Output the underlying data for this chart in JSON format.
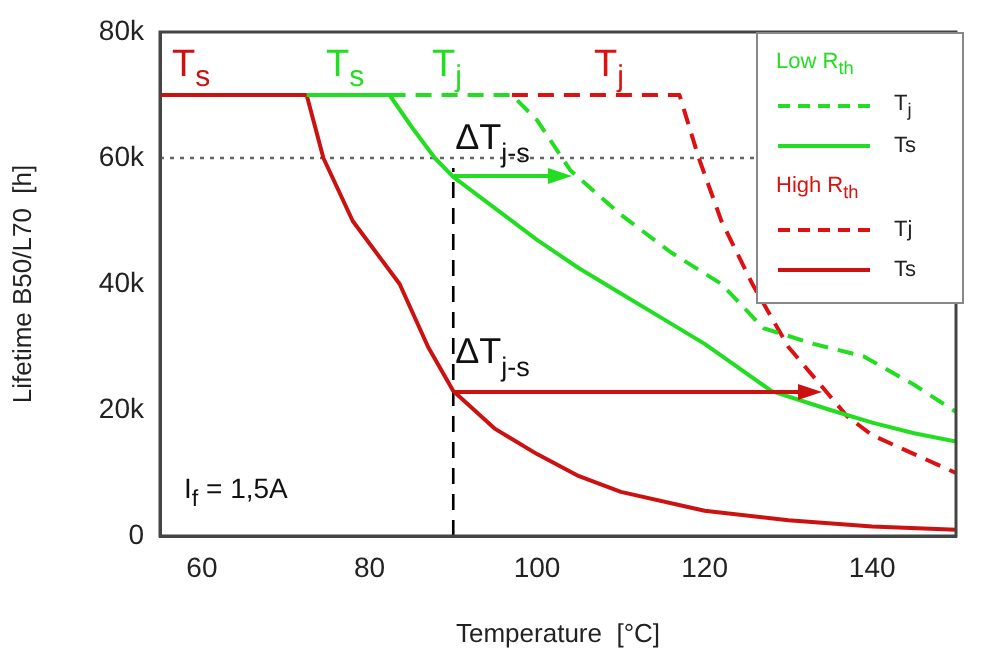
{
  "chart_data": {
    "type": "line",
    "xlabel": "Temperature  [°C]",
    "ylabel": "Lifetime B50/L70  [h]",
    "xlim": [
      55,
      150
    ],
    "xticks": [
      60,
      80,
      100,
      120,
      140
    ],
    "ylim": [
      0,
      80000
    ],
    "yticks": [
      0,
      {
        "value": 20000,
        "label": "20k"
      },
      {
        "value": 40000,
        "label": "40k"
      },
      {
        "value": 60000,
        "label": "60k"
      },
      {
        "value": 80000,
        "label": "80k"
      }
    ],
    "grid": false,
    "legend": "top right",
    "marker": "none",
    "series": [
      {
        "name": "T$_{j}$",
        "color": "#22dd22",
        "line_style": "dashed",
        "x": [
          82.4,
          97,
          100,
          104,
          110,
          116,
          122,
          127,
          133,
          139,
          145,
          150
        ],
        "values": [
          70000,
          70000,
          66000,
          58000,
          51000,
          45000,
          40000,
          33000,
          30500,
          28500,
          24000,
          19700
        ]
      },
      {
        "name": "Ts",
        "color": "#22dd22",
        "line_style": "solid",
        "x": [
          72.5,
          82.4,
          85,
          87.8,
          90,
          95,
          100,
          105,
          110,
          115,
          120,
          128,
          135,
          140,
          145,
          150
        ],
        "values": [
          70000,
          70000,
          65000,
          60000,
          57000,
          52000,
          47000,
          42500,
          38500,
          34500,
          30500,
          23000,
          20000,
          18000,
          16300,
          15000
        ]
      },
      {
        "name": "Tj",
        "color": "#dd1111",
        "line_style": "dashed",
        "x": [
          97,
          117,
          119.3,
          122,
          125.7,
          130,
          137,
          140,
          145,
          150
        ],
        "values": [
          70000,
          70000,
          60000,
          50000,
          40000,
          30000,
          19000,
          16000,
          13000,
          10000
        ]
      },
      {
        "name": "Ts",
        "color": "#cc1111",
        "line_style": "solid",
        "x": [
          55,
          72.5,
          74.5,
          78,
          83.6,
          87,
          90,
          95,
          100,
          105,
          110,
          120,
          130,
          140,
          150
        ],
        "values": [
          70000,
          70000,
          60000,
          50000,
          40000,
          30000,
          23000,
          17000,
          13000,
          9500,
          7000,
          4000,
          2500,
          1500,
          1000
        ]
      }
    ],
    "ref_lines": [
      {
        "axis": "y",
        "value": 60000,
        "line_style": "dotted",
        "color": "#666666"
      },
      {
        "axis": "x",
        "value": 90,
        "line_style": "dashed",
        "color": "#000000"
      }
    ],
    "annotations": [
      "Low R$_{th}$",
      "High R$_{th}$",
      "I$_{f}$ = 1,5A",
      "T$_{s}$",
      "T$_{s}$",
      "T$_{j}$",
      "T$_{j}$",
      {
        "text": "ΔT$_{j-s}$",
        "x": 90,
        "y": 57000
      },
      {
        "text": "ΔT$_{j-s}$",
        "x": 90,
        "y": 23000
      }
    ]
  }
}
